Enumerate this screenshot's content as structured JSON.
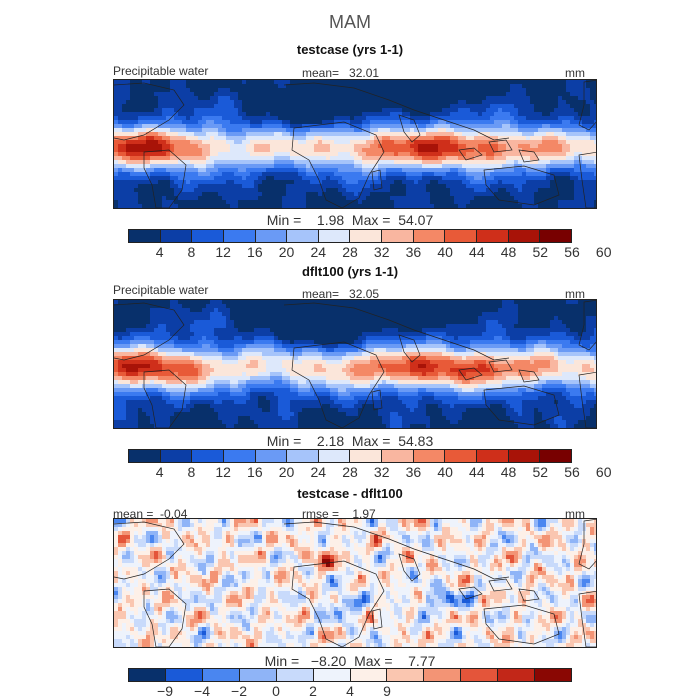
{
  "season": "MAM",
  "colors": {
    "cbar12": [
      "#08306b",
      "#0c3ea6",
      "#1a5ad8",
      "#3b7af0",
      "#6a9af5",
      "#a6c4fa",
      "#dde8fb",
      "#fbe6da",
      "#f9b6a0",
      "#f48866",
      "#e85a38",
      "#cf2f1a",
      "#a81308",
      "#780000"
    ],
    "cbar3": [
      "#08306b",
      "#1a5ad8",
      "#4a86f0",
      "#8fb4f7",
      "#c8dafb",
      "#eef3fc",
      "#fdf0e8",
      "#fac6b0",
      "#f39475",
      "#e4553a",
      "#c22718",
      "#8a0703"
    ],
    "land": "#222222"
  },
  "panels": [
    {
      "title": "testcase (yrs 1-1)",
      "left_label": "Precipitable water",
      "center_label": "mean=   32.01",
      "right_label": "mm",
      "minmax": "Min =    1.98  Max =  54.07",
      "ticks": [
        "4",
        "8",
        "12",
        "16",
        "20",
        "24",
        "28",
        "32",
        "36",
        "40",
        "44",
        "48",
        "52",
        "56",
        "60"
      ]
    },
    {
      "title": "dflt100 (yrs 1-1)",
      "left_label": "Precipitable water",
      "center_label": "mean=   32.05",
      "right_label": "mm",
      "minmax": "Min =    2.18  Max =  54.83",
      "ticks": [
        "4",
        "8",
        "12",
        "16",
        "20",
        "24",
        "28",
        "32",
        "36",
        "40",
        "44",
        "48",
        "52",
        "56",
        "60"
      ]
    },
    {
      "title": "testcase - dflt100",
      "left_label": "mean =  -0.04",
      "center_label": "rmse =    1.97",
      "right_label": "mm",
      "minmax": "Min =   −8.20  Max =    7.77",
      "ticks": [
        "−9",
        "−4",
        "−2",
        "0",
        "2",
        "4",
        "9"
      ]
    }
  ]
}
